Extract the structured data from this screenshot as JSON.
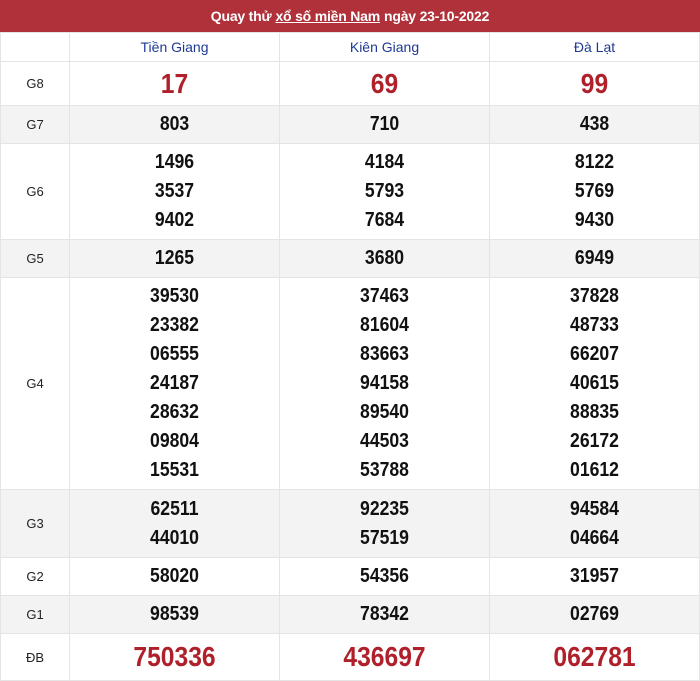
{
  "header": {
    "prefix": "Quay thử",
    "link": "xổ số miền Nam",
    "suffix": "ngày 23-10-2022",
    "bg_color": "#b1313a"
  },
  "provinces": [
    "Tiền Giang",
    "Kiên Giang",
    "Đà Lạt"
  ],
  "prizes": [
    {
      "label": "G8",
      "highlight": true,
      "values": [
        [
          "17"
        ],
        [
          "69"
        ],
        [
          "99"
        ]
      ]
    },
    {
      "label": "G7",
      "values": [
        [
          "803"
        ],
        [
          "710"
        ],
        [
          "438"
        ]
      ]
    },
    {
      "label": "G6",
      "values": [
        [
          "1496",
          "3537",
          "9402"
        ],
        [
          "4184",
          "5793",
          "7684"
        ],
        [
          "8122",
          "5769",
          "9430"
        ]
      ]
    },
    {
      "label": "G5",
      "values": [
        [
          "1265"
        ],
        [
          "3680"
        ],
        [
          "6949"
        ]
      ]
    },
    {
      "label": "G4",
      "values": [
        [
          "39530",
          "23382",
          "06555",
          "24187",
          "28632",
          "09804",
          "15531"
        ],
        [
          "37463",
          "81604",
          "83663",
          "94158",
          "89540",
          "44503",
          "53788"
        ],
        [
          "37828",
          "48733",
          "66207",
          "40615",
          "88835",
          "26172",
          "01612"
        ]
      ]
    },
    {
      "label": "G3",
      "values": [
        [
          "62511",
          "44010"
        ],
        [
          "92235",
          "57519"
        ],
        [
          "94584",
          "04664"
        ]
      ]
    },
    {
      "label": "G2",
      "values": [
        [
          "58020"
        ],
        [
          "54356"
        ],
        [
          "31957"
        ]
      ]
    },
    {
      "label": "G1",
      "values": [
        [
          "98539"
        ],
        [
          "78342"
        ],
        [
          "02769"
        ]
      ]
    },
    {
      "label": "ĐB",
      "highlight": true,
      "values": [
        [
          "750336"
        ],
        [
          "436697"
        ],
        [
          "062781"
        ]
      ]
    }
  ]
}
